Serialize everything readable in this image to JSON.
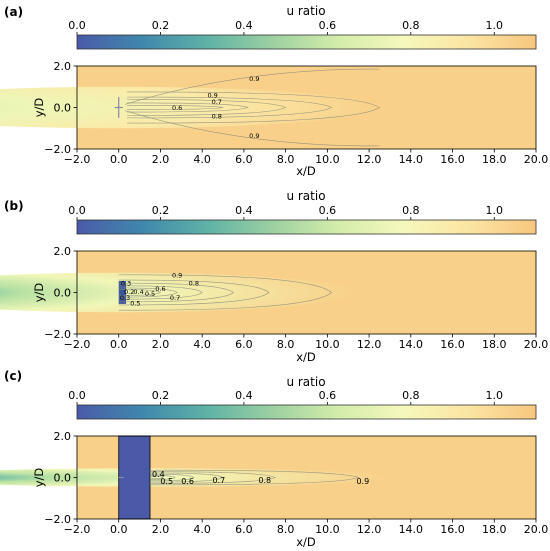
{
  "colormap": [
    "#4a5aa8",
    "#3f88ad",
    "#5fb3a6",
    "#9dd1a1",
    "#d4edaa",
    "#f5f8bc",
    "#fbe4a2",
    "#f7c67e"
  ],
  "background": "#f8d089",
  "chart_data": [
    {
      "type": "heatmap",
      "panel_label": "(a)",
      "colorbar": {
        "title": "u ratio",
        "range": [
          0.0,
          1.1
        ],
        "ticks": [
          0.0,
          0.2,
          0.4,
          0.6,
          0.8,
          1.0
        ],
        "tick_labels": [
          "0.0",
          "0.2",
          "0.4",
          "0.6",
          "0.8",
          "1.0"
        ]
      },
      "xlabel": "x/D",
      "ylabel": "y/D",
      "xlim": [
        -2.0,
        20.0
      ],
      "ylim": [
        -2.0,
        2.0
      ],
      "xticks": [
        -2.0,
        0.0,
        2.0,
        4.0,
        6.0,
        8.0,
        10.0,
        12.0,
        14.0,
        16.0,
        18.0,
        20.0
      ],
      "xtick_labels": [
        "−2.0",
        "0.0",
        "2.0",
        "4.0",
        "6.0",
        "8.0",
        "10.0",
        "12.0",
        "14.0",
        "16.0",
        "18.0",
        "20.0"
      ],
      "yticks": [
        -2.0,
        0.0,
        2.0
      ],
      "ytick_labels": [
        "−2.0",
        "0.0",
        "2.0"
      ],
      "rotor": {
        "x": 0.0,
        "half_width": 0.5
      },
      "contour_labels": [
        {
          "text": "0.9",
          "x": 6.5,
          "y": 1.4
        },
        {
          "text": "0.9",
          "x": 4.5,
          "y": 0.6
        },
        {
          "text": "0.7",
          "x": 4.7,
          "y": 0.3
        },
        {
          "text": "0.6",
          "x": 2.8,
          "y": 0.0
        },
        {
          "text": "0.8",
          "x": 4.7,
          "y": -0.4
        },
        {
          "text": "0.9",
          "x": 6.5,
          "y": -1.35
        }
      ]
    },
    {
      "type": "heatmap",
      "panel_label": "(b)",
      "colorbar": {
        "title": "u ratio",
        "range": [
          0.0,
          1.1
        ],
        "ticks": [
          0.0,
          0.2,
          0.4,
          0.6,
          0.8,
          1.0
        ],
        "tick_labels": [
          "0.0",
          "0.2",
          "0.4",
          "0.6",
          "0.8",
          "1.0"
        ]
      },
      "xlabel": "x/D",
      "ylabel": "y/D",
      "xlim": [
        -2.0,
        20.0
      ],
      "ylim": [
        -2.0,
        2.0
      ],
      "xticks": [
        -2.0,
        0.0,
        2.0,
        4.0,
        6.0,
        8.0,
        10.0,
        12.0,
        14.0,
        16.0,
        18.0,
        20.0
      ],
      "xtick_labels": [
        "−2.0",
        "0.0",
        "2.0",
        "4.0",
        "6.0",
        "8.0",
        "10.0",
        "12.0",
        "14.0",
        "16.0",
        "18.0",
        "20.0"
      ],
      "yticks": [
        -2.0,
        0.0,
        2.0
      ],
      "ytick_labels": [
        "−2.0",
        "0.0",
        "2.0"
      ],
      "rotor": {
        "x": 0.0,
        "half_width": 0.5
      },
      "contour_labels": [
        {
          "text": "0.9",
          "x": 2.8,
          "y": 0.85
        },
        {
          "text": "0.8",
          "x": 3.6,
          "y": 0.45
        },
        {
          "text": "0.6",
          "x": 2.0,
          "y": 0.2
        },
        {
          "text": "0.5",
          "x": 1.5,
          "y": -0.05
        },
        {
          "text": "0.7",
          "x": 2.7,
          "y": -0.25
        },
        {
          "text": "0.3",
          "x": 0.35,
          "y": 0.45
        },
        {
          "text": "0.2",
          "x": 0.5,
          "y": 0.05
        },
        {
          "text": "0.4",
          "x": 0.95,
          "y": 0.05
        },
        {
          "text": "0.3",
          "x": 0.3,
          "y": -0.25
        },
        {
          "text": "0.5",
          "x": 0.8,
          "y": -0.5
        }
      ]
    },
    {
      "type": "heatmap",
      "panel_label": "(c)",
      "colorbar": {
        "title": "u ratio",
        "range": [
          0.0,
          1.1
        ],
        "ticks": [
          0.0,
          0.2,
          0.4,
          0.6,
          0.8,
          1.0
        ],
        "tick_labels": [
          "0.0",
          "0.2",
          "0.4",
          "0.6",
          "0.8",
          "1.0"
        ]
      },
      "xlabel": "x/D",
      "ylabel": "y/D",
      "xlim": [
        -2.0,
        20.0
      ],
      "ylim": [
        -2.0,
        2.0
      ],
      "xticks": [
        -2.0,
        0.0,
        2.0,
        4.0,
        6.0,
        8.0,
        10.0,
        12.0,
        14.0,
        16.0,
        18.0,
        20.0
      ],
      "xtick_labels": [
        "−2.0",
        "0.0",
        "2.0",
        "4.0",
        "6.0",
        "8.0",
        "10.0",
        "12.0",
        "14.0",
        "16.0",
        "18.0",
        "20.0"
      ],
      "yticks": [
        -2.0,
        0.0,
        2.0
      ],
      "ytick_labels": [
        "−2.0",
        "0.0",
        "2.0"
      ],
      "rotor": {
        "x": 0.0,
        "half_width": 0.5
      },
      "block": {
        "x0": 0.0,
        "x1": 1.5,
        "y0": -2.0,
        "y1": 2.0
      },
      "contour_labels": [
        {
          "text": "0.4",
          "x": 1.9,
          "y": 0.15
        },
        {
          "text": "0.5",
          "x": 2.3,
          "y": -0.2
        },
        {
          "text": "0.6",
          "x": 3.3,
          "y": -0.2
        },
        {
          "text": "0.7",
          "x": 4.8,
          "y": -0.15
        },
        {
          "text": "0.8",
          "x": 7.0,
          "y": -0.15
        },
        {
          "text": "0.9",
          "x": 11.7,
          "y": -0.2
        }
      ]
    }
  ]
}
